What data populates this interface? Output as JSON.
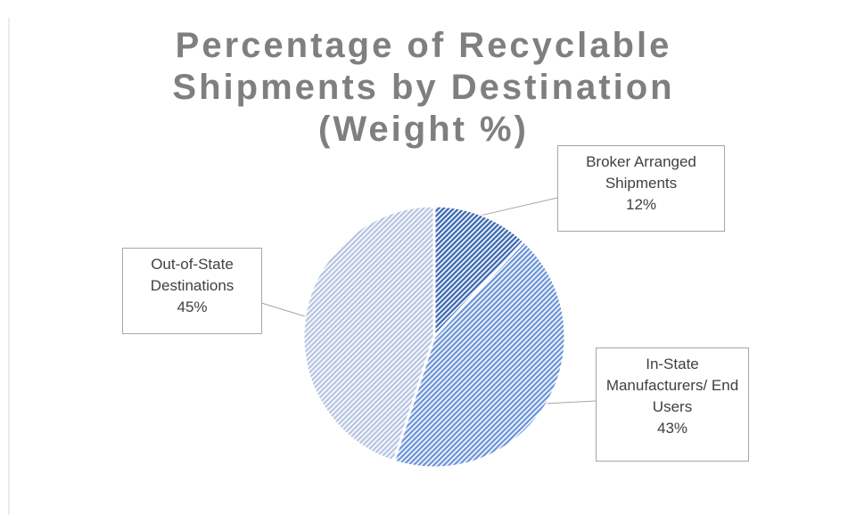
{
  "chart_data": {
    "type": "pie",
    "title": "Percentage of Recyclable Shipments by Destination (Weight %)",
    "categories": [
      "Broker Arranged Shipments",
      "In-State Manufacturers/ End Users",
      "Out-of-State Destinations"
    ],
    "values": [
      12,
      43,
      45
    ],
    "value_labels": [
      "12%",
      "43%",
      "45%"
    ],
    "colors": [
      "#3f6db3",
      "#6f97d9",
      "#b9c6e3"
    ]
  }
}
